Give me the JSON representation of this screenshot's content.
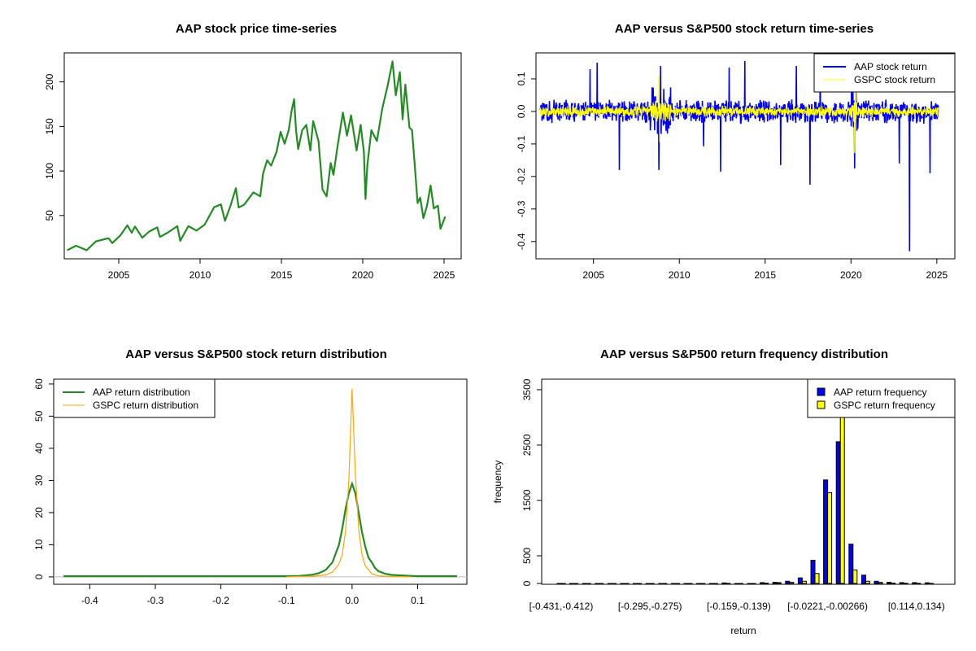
{
  "chart_data": [
    {
      "type": "line",
      "title": "AAP stock price time-series",
      "xlim": [
        2001.65,
        2026.05
      ],
      "ylim": [
        1.4,
        232.6
      ],
      "xticks": [
        2005,
        2010,
        2015,
        2020,
        2025
      ],
      "yticks": [
        50,
        100,
        150,
        200
      ],
      "grid": false,
      "series": [
        {
          "color": "#228B22",
          "x": [
            2001.83,
            2002.37,
            2003.03,
            2003.6,
            2004.37,
            2004.6,
            2005.1,
            2005.53,
            2005.8,
            2006.0,
            2006.45,
            2006.87,
            2007.37,
            2007.53,
            2008.0,
            2008.6,
            2008.78,
            2009.28,
            2009.78,
            2010.28,
            2010.87,
            2011.28,
            2011.53,
            2011.87,
            2012.2,
            2012.37,
            2012.7,
            2013.28,
            2013.7,
            2013.87,
            2014.12,
            2014.37,
            2014.7,
            2014.95,
            2015.2,
            2015.45,
            2015.62,
            2015.78,
            2015.9,
            2016.03,
            2016.28,
            2016.53,
            2016.78,
            2016.95,
            2017.28,
            2017.53,
            2017.78,
            2018.03,
            2018.2,
            2018.45,
            2018.78,
            2019.03,
            2019.28,
            2019.62,
            2019.87,
            2020.07,
            2020.17,
            2020.28,
            2020.53,
            2020.87,
            2021.2,
            2021.53,
            2021.83,
            2022.03,
            2022.28,
            2022.45,
            2022.62,
            2022.87,
            2023.03,
            2023.2,
            2023.37,
            2023.53,
            2023.73,
            2023.95,
            2024.17,
            2024.37,
            2024.62,
            2024.78,
            2025.07
          ],
          "y": [
            11,
            16,
            11,
            21,
            24.5,
            19,
            27.6,
            39,
            30.6,
            37.6,
            25,
            32,
            36.7,
            26,
            30.6,
            38,
            21.5,
            38,
            33,
            39.7,
            59.4,
            62.4,
            44,
            61,
            80.6,
            59,
            62,
            76,
            71.5,
            97,
            112,
            106,
            121.5,
            144,
            130.6,
            145.8,
            167,
            180.6,
            145.8,
            124.5,
            145.8,
            151.8,
            123,
            156,
            133.6,
            79,
            71.5,
            109,
            95.8,
            127.6,
            165.5,
            139.7,
            162.4,
            123,
            151.8,
            121.5,
            68.5,
            106,
            145.8,
            133.6,
            170,
            195.8,
            223,
            185,
            211,
            158,
            197,
            148.8,
            145.8,
            106,
            64,
            70,
            47,
            61,
            83.6,
            58,
            61,
            35,
            48.8
          ]
        }
      ]
    },
    {
      "type": "line",
      "title": "AAP versus S&P500 stock return time-series",
      "xlim": [
        2001.65,
        2026.05
      ],
      "ylim": [
        -0.453,
        0.18
      ],
      "xticks": [
        2005,
        2010,
        2015,
        2020,
        2025
      ],
      "yticks": [
        -0.4,
        -0.3,
        -0.2,
        -0.1,
        0.0,
        0.1
      ],
      "ytick_labels": [
        "-0.4",
        "-0.3",
        "-0.2",
        "-0.1",
        "0.0",
        "0.1"
      ],
      "legend_position": "top-right",
      "series": [
        {
          "name": "AAP stock return",
          "color": "#0000FF",
          "typical_range": 0.03,
          "extremes": [
            [
              2004.8,
              0.13
            ],
            [
              2005.2,
              0.15
            ],
            [
              2006.5,
              -0.18
            ],
            [
              2008.8,
              -0.18
            ],
            [
              2008.9,
              0.14
            ],
            [
              2011.4,
              -0.107
            ],
            [
              2012.4,
              -0.185
            ],
            [
              2012.9,
              0.135
            ],
            [
              2013.8,
              0.155
            ],
            [
              2015.9,
              -0.165
            ],
            [
              2016.8,
              0.14
            ],
            [
              2017.6,
              -0.225
            ],
            [
              2018.2,
              0.15
            ],
            [
              2020.2,
              -0.175
            ],
            [
              2022.8,
              -0.16
            ],
            [
              2023.4,
              -0.43
            ],
            [
              2024.6,
              -0.19
            ]
          ]
        },
        {
          "name": "GSPC stock return",
          "color": "#FFFF00",
          "typical_range": 0.015,
          "extremes": [
            [
              2008.8,
              0.11
            ],
            [
              2008.85,
              -0.095
            ],
            [
              2020.2,
              -0.128
            ],
            [
              2020.25,
              0.09
            ]
          ]
        }
      ]
    },
    {
      "type": "line",
      "title": "AAP versus S&P500 stock return distribution",
      "xlim": [
        -0.455,
        0.175
      ],
      "ylim": [
        -2.3,
        61.5
      ],
      "xticks": [
        -0.4,
        -0.3,
        -0.2,
        -0.1,
        0.0,
        0.1
      ],
      "xtick_labels": [
        "-0.4",
        "-0.3",
        "-0.2",
        "-0.1",
        "0.0",
        "0.1"
      ],
      "yticks": [
        0,
        10,
        20,
        30,
        40,
        50,
        60
      ],
      "legend_position": "top-left",
      "series": [
        {
          "name": "AAP return distribution",
          "color": "#228B22",
          "x": [
            -0.44,
            -0.1,
            -0.08,
            -0.06,
            -0.05,
            -0.04,
            -0.03,
            -0.02,
            -0.015,
            -0.01,
            -0.005,
            0,
            0.005,
            0.01,
            0.015,
            0.02,
            0.025,
            0.03,
            0.035,
            0.04,
            0.05,
            0.06,
            0.08,
            0.1,
            0.16
          ],
          "y": [
            0.2,
            0.2,
            0.3,
            0.7,
            1.2,
            2.2,
            4.5,
            10,
            15,
            21,
            26,
            29,
            26,
            20,
            14,
            9.5,
            6,
            4.5,
            2.8,
            1.8,
            1.0,
            0.6,
            0.4,
            0.2,
            0.2
          ]
        },
        {
          "name": "GSPC return distribution",
          "color": "#FFA500",
          "x": [
            -0.1,
            -0.06,
            -0.04,
            -0.03,
            -0.02,
            -0.015,
            -0.01,
            -0.005,
            0,
            0.005,
            0.01,
            0.015,
            0.02,
            0.03,
            0.04,
            0.06,
            0.09
          ],
          "y": [
            0,
            0.2,
            0.6,
            1.5,
            4,
            7,
            14,
            30,
            58.5,
            32,
            15,
            7,
            3.5,
            1,
            0.3,
            0.1,
            0
          ]
        }
      ]
    },
    {
      "type": "bar",
      "title": "AAP versus S&P500 return frequency distribution",
      "xlabel": "return",
      "ylabel": "frequency",
      "ylim": [
        0,
        3690
      ],
      "yticks": [
        0,
        500,
        1500,
        2500,
        3500
      ],
      "bin_labels_shown": [
        "[-0.431,-0.412)",
        "[-0.295,-0.275)",
        "[-0.159,-0.139)",
        "[-0.0221,-0.00266)",
        "[0.114,0.134)"
      ],
      "bin_label_indices": [
        0,
        7,
        14,
        21,
        28
      ],
      "legend_position": "top-right",
      "series": [
        {
          "name": "AAP return frequency",
          "color": "#0000FF",
          "values": [
            1,
            0,
            0,
            0,
            0,
            0,
            0,
            0,
            0,
            0,
            0,
            0,
            0,
            10,
            0,
            0,
            15,
            20,
            40,
            100,
            420,
            1870,
            2560,
            710,
            150,
            40,
            20,
            15,
            15,
            12
          ]
        },
        {
          "name": "GSPC return frequency",
          "color": "#FFFF00",
          "values": [
            0,
            0,
            0,
            0,
            0,
            0,
            0,
            0,
            0,
            0,
            0,
            0,
            0,
            2,
            0,
            0,
            5,
            15,
            20,
            40,
            180,
            1640,
            3750,
            245,
            40,
            20,
            5,
            3,
            2,
            1
          ]
        }
      ]
    }
  ]
}
